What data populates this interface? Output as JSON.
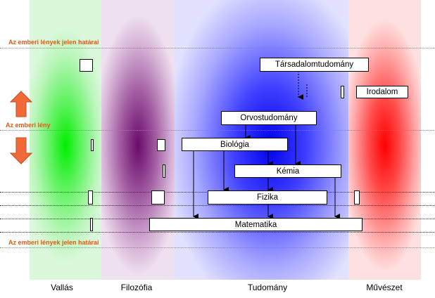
{
  "limit_label_top": "Az emberi lények jelen határai",
  "human_label": "Az emberi lény",
  "limit_label_bottom": "Az emberi lények jelen határai",
  "nodes": {
    "sociology": "Társadalomtudomány",
    "literature": "Irodalom",
    "medicine": "Orvostudomány",
    "biology": "Biológia",
    "chemistry": "Kémia",
    "physics": "Fizika",
    "mathematics": "Matematika"
  },
  "columns": {
    "religion": "Vallás",
    "philosophy": "Filozófia",
    "science": "Tudomány",
    "art": "Művészet"
  },
  "colors": {
    "religion": "#00ee00",
    "philosophy": "#6a0a6a",
    "science": "#0000ee",
    "art": "#ff0000",
    "limit_text": "#e65a10",
    "arrow_orange": "#f26a3a"
  }
}
